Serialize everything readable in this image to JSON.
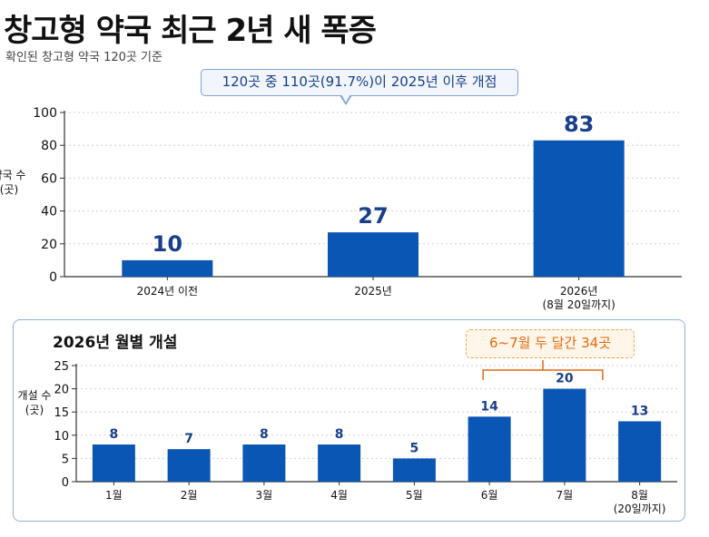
{
  "header": {
    "title": "창고형 약국 최근 2년 새 폭증",
    "subtitle": "확인된 창고형 약국 120곳 기준",
    "callout": "120곳 중 110곳(91.7%)이 2025년 이후 개점"
  },
  "monthly_panel": {
    "title": "2026년 월별 개설",
    "note": "6~7월 두 달간 34곳"
  },
  "colors": {
    "bar": "#0a56b4",
    "value_label": "#1a3f8a",
    "note_accent": "#e36a10"
  },
  "chart_data": [
    {
      "type": "bar",
      "title": "",
      "ylabel_lines": [
        "약국 수",
        "(곳)"
      ],
      "categories": [
        [
          "2024년 이전"
        ],
        [
          "2025년"
        ],
        [
          "2026년",
          "(8월 20일까지)"
        ]
      ],
      "values": [
        10,
        27,
        83
      ],
      "ylim": [
        0,
        100
      ],
      "yticks": [
        0,
        20,
        40,
        60,
        80,
        100
      ],
      "grid": true,
      "data_labels": true
    },
    {
      "type": "bar",
      "title": "2026년 월별 개설",
      "ylabel_lines": [
        "개설 수",
        "(곳)"
      ],
      "categories": [
        [
          "1월"
        ],
        [
          "2월"
        ],
        [
          "3월"
        ],
        [
          "4월"
        ],
        [
          "5월"
        ],
        [
          "6월"
        ],
        [
          "7월"
        ],
        [
          "8월",
          "(20일까지)"
        ]
      ],
      "values": [
        8,
        7,
        8,
        8,
        5,
        14,
        20,
        13
      ],
      "ylim": [
        0,
        25
      ],
      "yticks": [
        0,
        5,
        10,
        15,
        20,
        25
      ],
      "grid": true,
      "data_labels": true
    }
  ]
}
